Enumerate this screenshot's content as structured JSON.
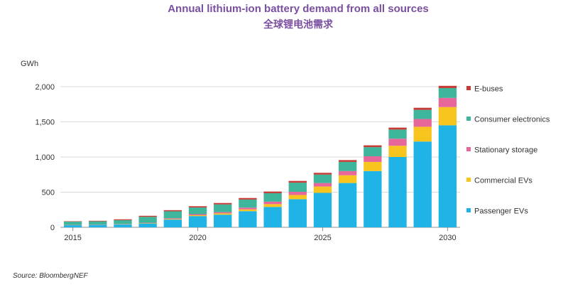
{
  "chart_data": {
    "type": "bar",
    "stacked": true,
    "title": "Annual lithium-ion battery demand from all sources",
    "subtitle": "全球锂电池需求",
    "ylabel": "GWh",
    "source": "Source: BloombergNEF",
    "ylim": [
      0,
      2000
    ],
    "yticks": [
      "0",
      "500",
      "1,000",
      "1,500",
      "2,000"
    ],
    "ytick_values": [
      0,
      500,
      1000,
      1500,
      2000
    ],
    "categories": [
      2015,
      2016,
      2017,
      2018,
      2019,
      2020,
      2021,
      2022,
      2023,
      2024,
      2025,
      2026,
      2027,
      2028,
      2029,
      2030
    ],
    "xtick_labels": [
      "2015",
      "2020",
      "2025",
      "2030"
    ],
    "xtick_values": [
      2015,
      2020,
      2025,
      2030
    ],
    "grid": true,
    "legend_position": "right",
    "series": [
      {
        "name": "Passenger EVs",
        "color": "#1fb3e6",
        "values": [
          30,
          35,
          40,
          55,
          110,
          160,
          180,
          230,
          290,
          400,
          490,
          630,
          800,
          1000,
          1220,
          1450
        ]
      },
      {
        "name": "Commercial EVs",
        "color": "#f7c51e",
        "values": [
          2,
          2,
          3,
          5,
          8,
          12,
          18,
          25,
          40,
          60,
          90,
          110,
          130,
          160,
          210,
          260
        ]
      },
      {
        "name": "Stationary storage",
        "color": "#e8679b",
        "values": [
          3,
          3,
          4,
          5,
          10,
          15,
          18,
          25,
          35,
          45,
          50,
          60,
          80,
          100,
          110,
          130
        ]
      },
      {
        "name": "Consumer electronics",
        "color": "#3db69b",
        "values": [
          45,
          45,
          55,
          85,
          100,
          95,
          110,
          115,
          120,
          130,
          120,
          130,
          130,
          130,
          130,
          140
        ]
      },
      {
        "name": "E-buses",
        "color": "#c63b35",
        "values": [
          6,
          8,
          12,
          14,
          16,
          18,
          20,
          22,
          24,
          25,
          25,
          26,
          26,
          28,
          30,
          32
        ]
      }
    ]
  }
}
